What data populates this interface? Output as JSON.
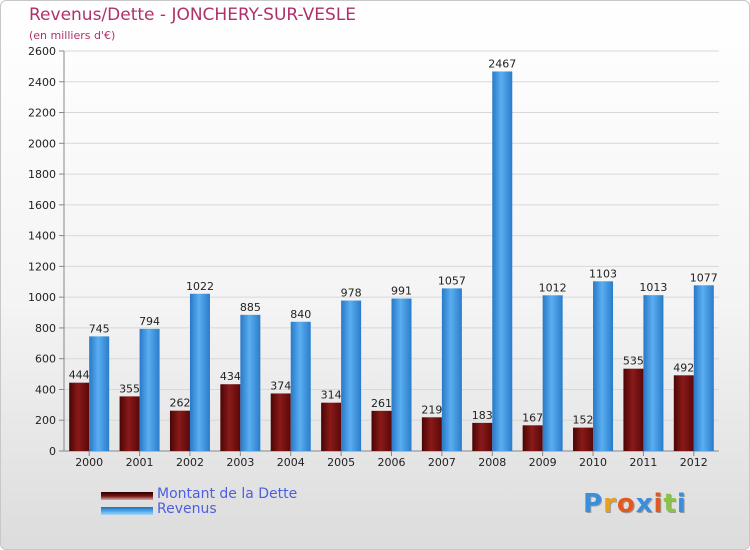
{
  "chart_data": {
    "type": "bar",
    "title": "Revenus/Dette - JONCHERY-SUR-VESLE",
    "subtitle": "(en milliers d'€)",
    "categories": [
      "2000",
      "2001",
      "2002",
      "2003",
      "2004",
      "2005",
      "2006",
      "2007",
      "2008",
      "2009",
      "2010",
      "2011",
      "2012"
    ],
    "series": [
      {
        "name": "Montant de la Dette",
        "color": "#7a1010",
        "values": [
          444,
          355,
          262,
          434,
          374,
          314,
          261,
          219,
          183,
          167,
          152,
          535,
          492
        ]
      },
      {
        "name": "Revenus",
        "color": "#3a8fdc",
        "values": [
          745,
          794,
          1022,
          885,
          840,
          978,
          991,
          1057,
          2467,
          1012,
          1103,
          1013,
          1077
        ]
      }
    ],
    "ylim": [
      0,
      2600
    ],
    "yticks": [
      0,
      200,
      400,
      600,
      800,
      1000,
      1200,
      1400,
      1600,
      1800,
      2000,
      2200,
      2400,
      2600
    ],
    "grid": true,
    "legend_position": "bottom-left"
  },
  "legend": {
    "items": [
      {
        "label": "Montant de la Dette",
        "color": "#6b0a0a"
      },
      {
        "label": "Revenus",
        "color": "#3a8fdc"
      }
    ]
  },
  "logo": {
    "letters": [
      "P",
      "r",
      "o",
      "x",
      "i",
      "t",
      "i"
    ],
    "colors": [
      "#3a8fdc",
      "#e8a020",
      "#e05a20",
      "#3a8fdc",
      "#e05a20",
      "#8bc34a",
      "#3a8fdc"
    ]
  }
}
